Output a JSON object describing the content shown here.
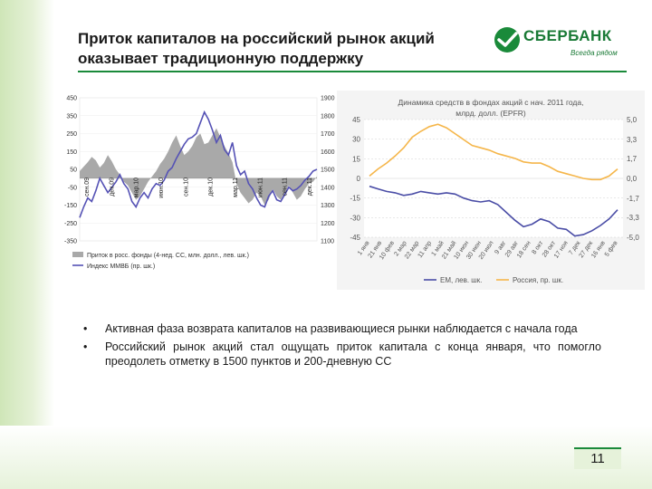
{
  "title_lines": [
    "Приток капиталов на российский рынок акций",
    "оказывает традиционную поддержку"
  ],
  "logo": {
    "name": "СБЕРБАНК",
    "slogan": "Всегда рядом"
  },
  "colors": {
    "green": "#1a8a3a",
    "flow_area": "#a9a9a9",
    "micex": "#5552b5",
    "em": "#4a4da6",
    "russia": "#f5b64a"
  },
  "bullets": [
    "Активная фаза возврата капиталов на развивающиеся рынки наблюдается с начала года",
    "Российский рынок акций стал ощущать приток капитала с конца января, что помогло преодолеть отметку в 1500 пунктов и 200-дневную СС"
  ],
  "page_number": "11",
  "chart_data": [
    {
      "type": "area",
      "legend": [
        "Приток в росс. фонды (4-нед. СС, млн. долл., лев. шк.)",
        "Индекс ММВБ (пр. шк.)"
      ],
      "y_left": {
        "ticks": [
          "450",
          "350",
          "250",
          "150",
          "50",
          "-50",
          "-150",
          "-250",
          "-350"
        ],
        "min": -350,
        "max": 450
      },
      "y_right": {
        "ticks": [
          "1900",
          "1800",
          "1700",
          "1600",
          "1500",
          "1400",
          "1300",
          "1200",
          "1100"
        ],
        "min": 1100,
        "max": 1900
      },
      "x_labels": [
        "сен.09",
        "дек.09",
        "мар.10",
        "июн.10",
        "сен.10",
        "дек.10",
        "мар.11",
        "июн.11",
        "сен.11",
        "дек.11"
      ],
      "series": [
        {
          "name": "Приток в росс. фонды (4-нед. СС, млн. долл., лев. шк.)",
          "axis": "left",
          "values": [
            40,
            65,
            90,
            120,
            100,
            60,
            85,
            130,
            95,
            50,
            20,
            -20,
            -40,
            -80,
            -120,
            -100,
            -60,
            -20,
            10,
            40,
            80,
            110,
            150,
            200,
            240,
            180,
            130,
            150,
            180,
            230,
            250,
            190,
            200,
            240,
            280,
            230,
            180,
            140,
            90,
            -30,
            -80,
            -110,
            -140,
            -120,
            -80,
            -100,
            -150,
            -120,
            -60,
            -100,
            -120,
            -80,
            -40,
            -80,
            -120,
            -100,
            -60,
            -30,
            -20,
            10
          ]
        },
        {
          "name": "Индекс ММВБ (пр. шк.)",
          "axis": "right",
          "values": [
            1230,
            1290,
            1340,
            1320,
            1380,
            1450,
            1410,
            1370,
            1400,
            1430,
            1470,
            1420,
            1390,
            1320,
            1290,
            1340,
            1370,
            1340,
            1390,
            1420,
            1410,
            1440,
            1490,
            1510,
            1560,
            1600,
            1640,
            1670,
            1680,
            1700,
            1760,
            1820,
            1780,
            1720,
            1650,
            1690,
            1610,
            1580,
            1650,
            1520,
            1470,
            1490,
            1420,
            1390,
            1340,
            1300,
            1290,
            1350,
            1380,
            1330,
            1320,
            1360,
            1400,
            1380,
            1390,
            1410,
            1440,
            1460,
            1490,
            1500
          ]
        }
      ]
    },
    {
      "type": "line",
      "title": "Динамика средств в фондах акций с нач. 2011 года, млрд. долл. (EPFR)",
      "y_left": {
        "ticks": [
          "45",
          "30",
          "15",
          "0",
          "-15",
          "-30",
          "-45"
        ],
        "min": -45,
        "max": 45
      },
      "y_right": {
        "ticks": [
          "5,0",
          "3,3",
          "1,7",
          "0,0",
          "-1,7",
          "-3,3",
          "-5,0"
        ],
        "min": -5,
        "max": 5
      },
      "x_labels": [
        "1 янв",
        "21 янв",
        "10 фев",
        "2 мар",
        "22 мар",
        "11 апр",
        "1 май",
        "21 май",
        "10 июн",
        "30 июн",
        "20 июл",
        "9 авг",
        "29 авг",
        "18 сен",
        "8 окт",
        "28 окт",
        "17 ноя",
        "7 дек",
        "27 дек",
        "16 янв",
        "5 фев"
      ],
      "series": [
        {
          "name": "EM, лев. шк.",
          "axis": "left",
          "values": [
            -6,
            -8,
            -10,
            -11,
            -13,
            -12,
            -10,
            -11,
            -12,
            -11,
            -12,
            -15,
            -17,
            -18,
            -17,
            -20,
            -26,
            -32,
            -37,
            -35,
            -31,
            -33,
            -38,
            -39,
            -44,
            -43,
            -40,
            -36,
            -31,
            -24
          ]
        },
        {
          "name": "Россия, пр. шк.",
          "axis": "right",
          "values": [
            0.2,
            0.8,
            1.3,
            1.9,
            2.6,
            3.5,
            4.0,
            4.4,
            4.6,
            4.3,
            3.8,
            3.3,
            2.8,
            2.6,
            2.4,
            2.1,
            1.9,
            1.7,
            1.4,
            1.3,
            1.3,
            1.0,
            0.6,
            0.4,
            0.2,
            0.0,
            -0.1,
            -0.1,
            0.2,
            0.8
          ]
        }
      ]
    }
  ]
}
